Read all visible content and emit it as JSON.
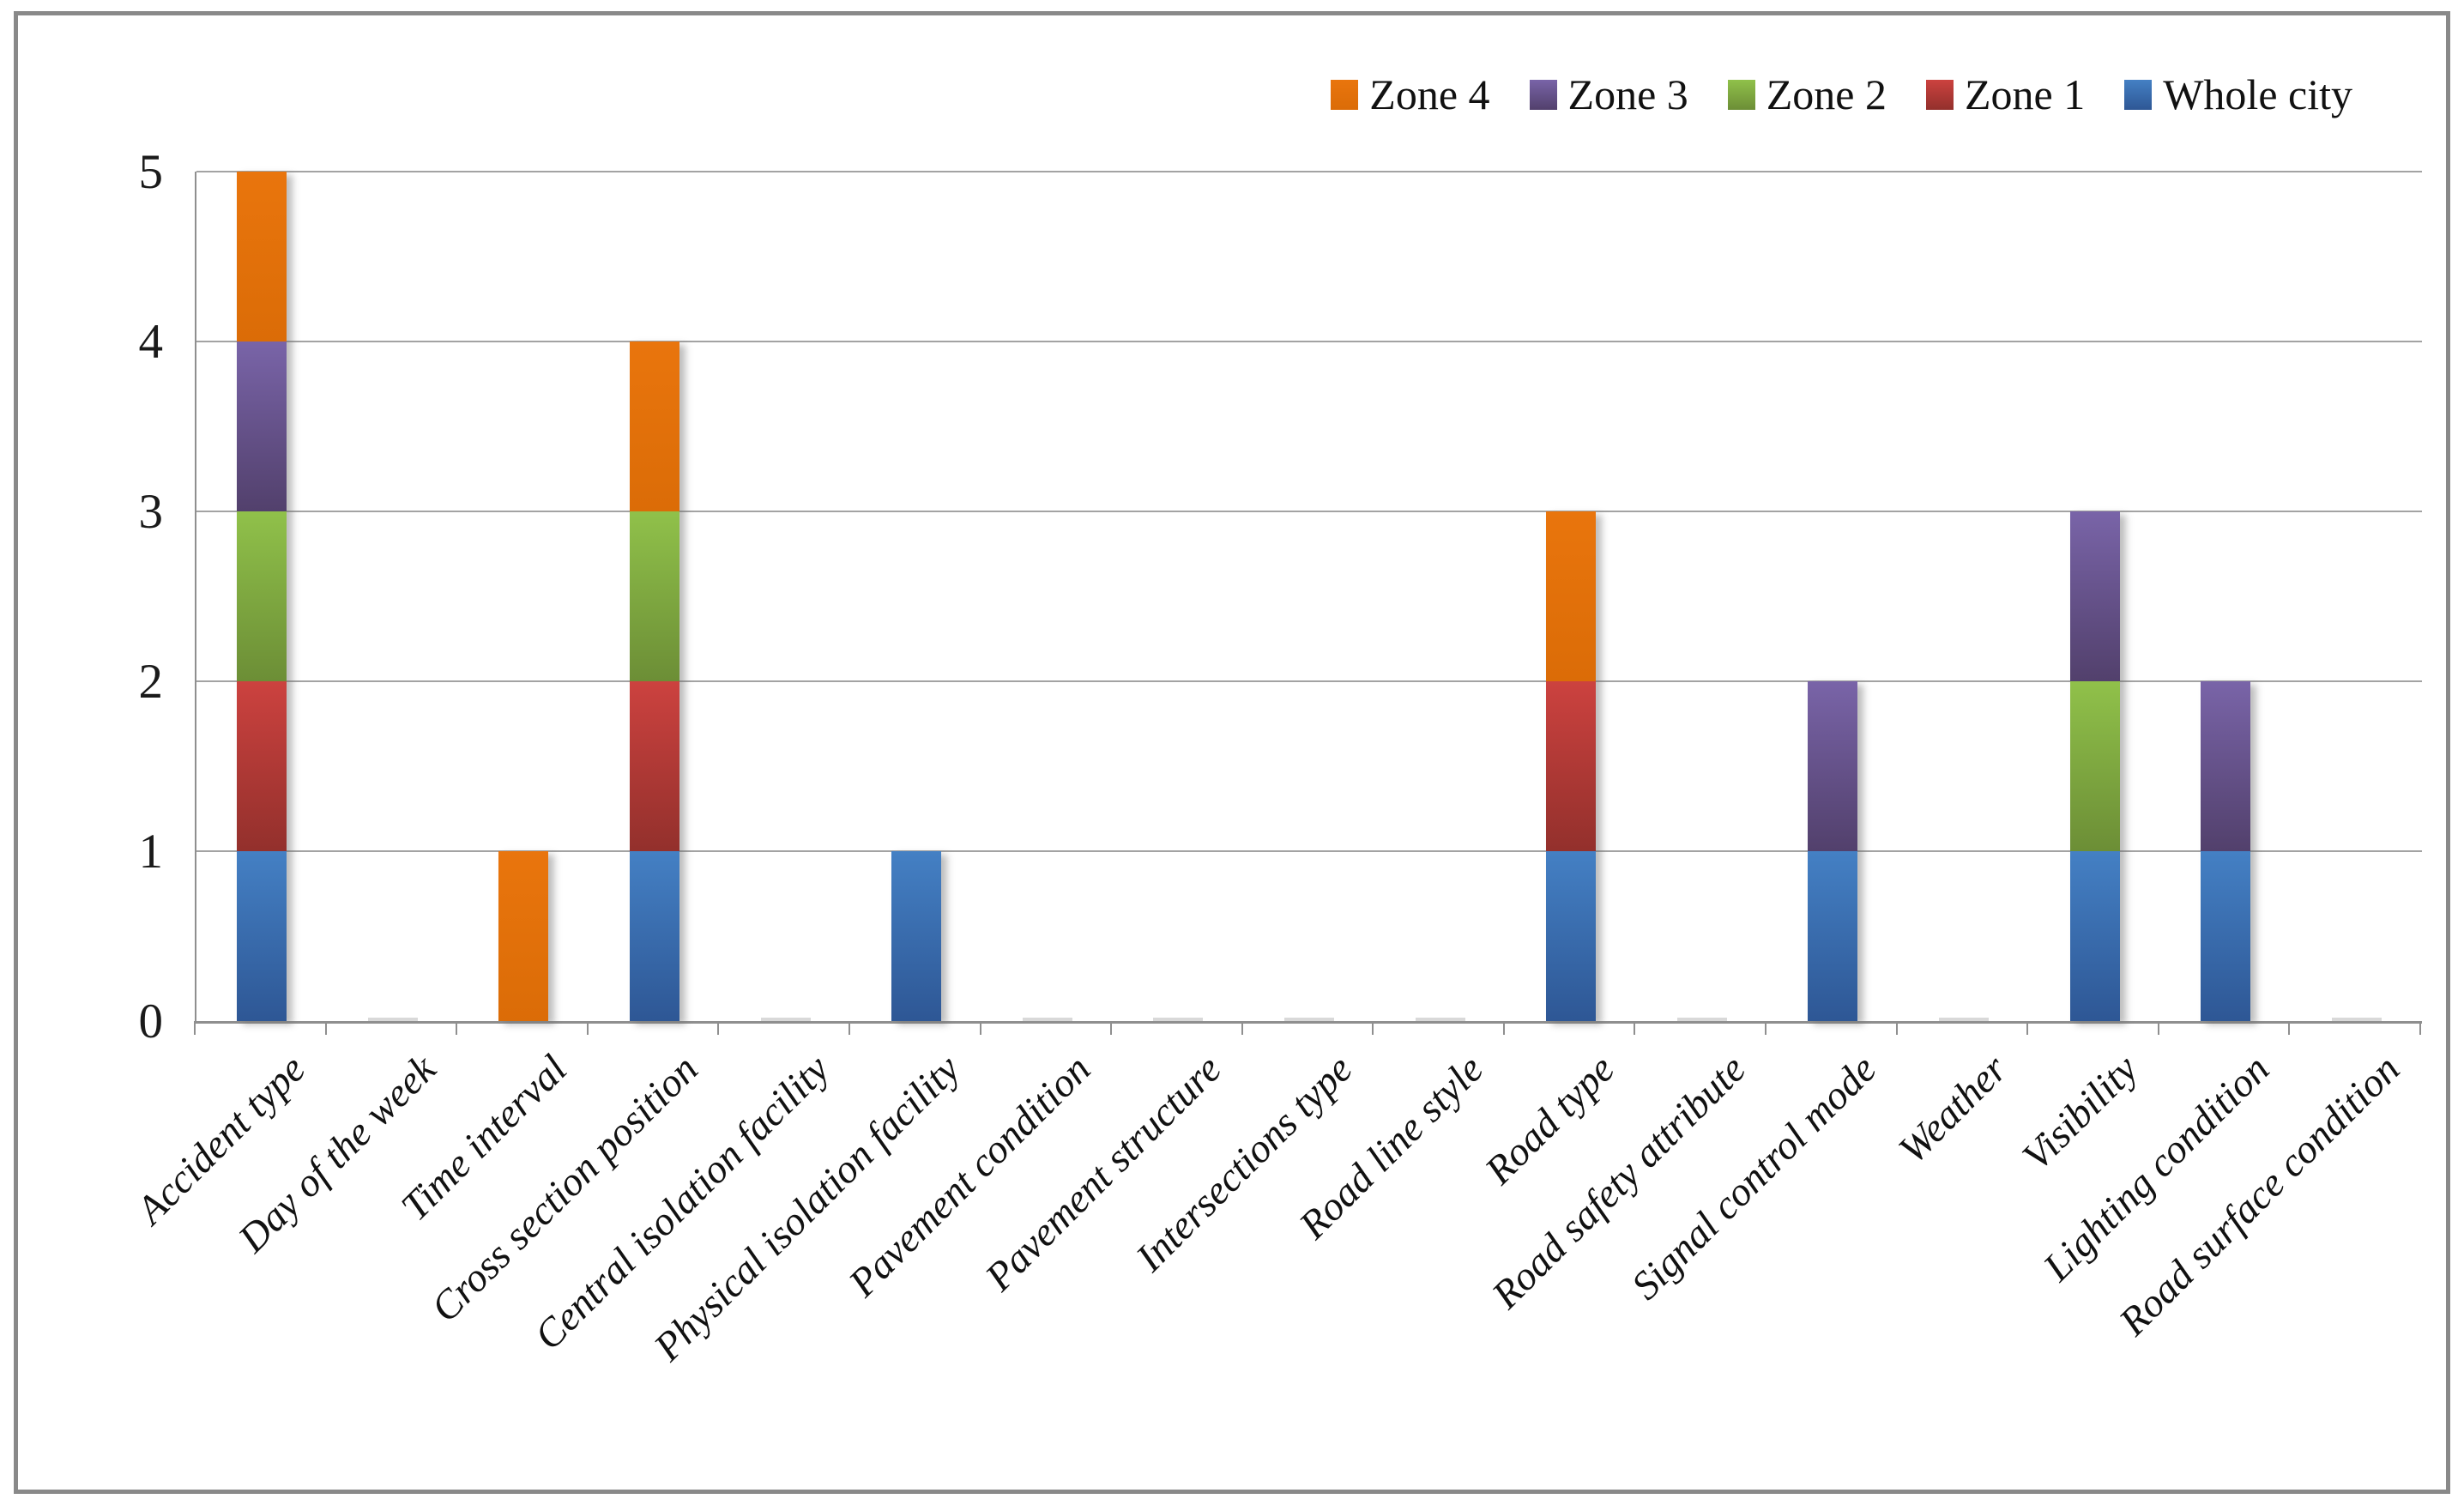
{
  "figure": {
    "background": "#ffffff",
    "frame_border_color": "#898989",
    "gridline_color": "#a3a3a3",
    "axis_color": "#8f8f8f"
  },
  "chart_data": {
    "type": "bar",
    "stacked": true,
    "title": "",
    "xlabel": "",
    "ylabel": "",
    "grid": true,
    "categories": [
      "Accident type",
      "Day of the week",
      "Time interval",
      "Cross section position",
      "Central isolation facility",
      "Physical isolation facility",
      "Pavement condition",
      "Pavement structure",
      "Intersections type",
      "Road line style",
      "Road type",
      "Road safety attribute",
      "Signal control mode",
      "Weather",
      "Visibility",
      "Lighting condition",
      "Road surface condition"
    ],
    "series": [
      {
        "name": "Whole city",
        "color_top": "#4480c4",
        "color_bottom": "#2e5795",
        "values": [
          1,
          0,
          0,
          1,
          0,
          1,
          0,
          0,
          0,
          0,
          1,
          0,
          1,
          0,
          1,
          1,
          0
        ]
      },
      {
        "name": "Zone 1",
        "color_top": "#cc423f",
        "color_bottom": "#93302c",
        "values": [
          1,
          0,
          0,
          1,
          0,
          0,
          0,
          0,
          0,
          0,
          1,
          0,
          0,
          0,
          0,
          0,
          0
        ]
      },
      {
        "name": "Zone 2",
        "color_top": "#90c14a",
        "color_bottom": "#6c8e36",
        "values": [
          1,
          0,
          0,
          1,
          0,
          0,
          0,
          0,
          0,
          0,
          0,
          0,
          0,
          0,
          1,
          0,
          0
        ]
      },
      {
        "name": "Zone 3",
        "color_top": "#7964a8",
        "color_bottom": "#52406c",
        "values": [
          1,
          0,
          0,
          0,
          0,
          0,
          0,
          0,
          0,
          0,
          0,
          0,
          1,
          0,
          1,
          1,
          0
        ]
      },
      {
        "name": "Zone 4",
        "color_top": "#e9750d",
        "color_bottom": "#db6c07",
        "values": [
          1,
          0,
          1,
          1,
          0,
          0,
          0,
          0,
          0,
          0,
          1,
          0,
          0,
          0,
          0,
          0,
          0
        ]
      }
    ],
    "legend": {
      "position": "top-right",
      "order": [
        "Zone 4",
        "Zone 3",
        "Zone 2",
        "Zone 1",
        "Whole city"
      ]
    },
    "y_axis": {
      "min": 0,
      "max": 5,
      "step": 1,
      "tick_labels": [
        "0",
        "1",
        "2",
        "3",
        "4",
        "5"
      ]
    }
  }
}
